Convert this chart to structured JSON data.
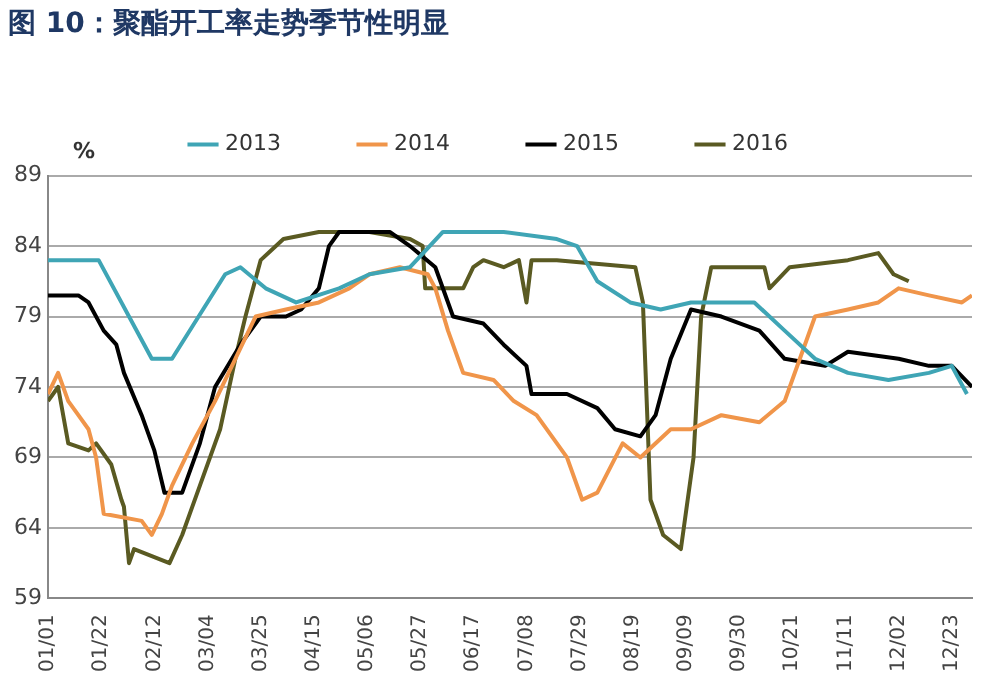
{
  "chart_data": {
    "type": "line",
    "title": "图 10：聚酯开工率走势季节性明显",
    "ylabel": "%",
    "legend": "top",
    "grid": "y",
    "marker": "none",
    "line_style": "solid",
    "xlim": [
      "--01-01",
      "--12-31"
    ],
    "ylim": [
      59,
      89
    ],
    "yticks": [
      59,
      64,
      69,
      74,
      79,
      84,
      89
    ],
    "xticks": [
      {
        "value": "--01-01",
        "label": "01/01"
      },
      {
        "value": "--01-22",
        "label": "01/22"
      },
      {
        "value": "--02-12",
        "label": "02/12"
      },
      {
        "value": "--03-04",
        "label": "03/04"
      },
      {
        "value": "--03-25",
        "label": "03/25"
      },
      {
        "value": "--04-15",
        "label": "04/15"
      },
      {
        "value": "--05-06",
        "label": "05/06"
      },
      {
        "value": "--05-27",
        "label": "05/27"
      },
      {
        "value": "--06-17",
        "label": "06/17"
      },
      {
        "value": "--07-08",
        "label": "07/08"
      },
      {
        "value": "--07-29",
        "label": "07/29"
      },
      {
        "value": "--08-19",
        "label": "08/19"
      },
      {
        "value": "--09-09",
        "label": "09/09"
      },
      {
        "value": "--09-30",
        "label": "09/30"
      },
      {
        "value": "--10-21",
        "label": "10/21"
      },
      {
        "value": "--11-11",
        "label": "11/11"
      },
      {
        "value": "--12-02",
        "label": "12/02"
      },
      {
        "value": "--12-23",
        "label": "12/23"
      }
    ],
    "series": [
      {
        "name": "2013",
        "color": "#3fa5b5",
        "x": [
          "--01-01",
          "--01-21",
          "--02-11",
          "--02-19",
          "--03-11",
          "--03-17",
          "--03-27",
          "--04-08",
          "--04-25",
          "--05-07",
          "--05-23",
          "--06-05",
          "--06-29",
          "--07-20",
          "--07-28",
          "--08-05",
          "--08-18",
          "--08-30",
          "--09-11",
          "--10-06",
          "--10-18",
          "--10-30",
          "--11-12",
          "--11-28",
          "--12-14",
          "--12-23",
          "--12-29"
        ],
        "values": [
          83,
          83,
          76,
          76,
          82,
          82.5,
          81,
          80,
          81,
          82,
          82.5,
          85,
          85,
          84.5,
          84,
          81.5,
          80,
          79.5,
          80,
          80,
          78,
          76,
          75,
          74.5,
          75,
          75.5,
          73.5
        ]
      },
      {
        "name": "2014",
        "color": "#f0954a",
        "x": [
          "--01-01",
          "--01-05",
          "--01-09",
          "--01-13",
          "--01-17",
          "--01-20",
          "--01-23",
          "--02-07",
          "--02-11",
          "--02-15",
          "--02-19",
          "--02-27",
          "--03-07",
          "--03-15",
          "--03-23",
          "--04-04",
          "--04-17",
          "--04-29",
          "--05-07",
          "--05-19",
          "--05-30",
          "--06-02",
          "--06-07",
          "--06-13",
          "--06-25",
          "--07-03",
          "--07-12",
          "--07-24",
          "--07-30",
          "--08-05",
          "--08-15",
          "--08-22",
          "--09-03",
          "--09-11",
          "--09-23",
          "--10-08",
          "--10-18",
          "--10-24",
          "--10-30",
          "--11-12",
          "--11-24",
          "--12-02",
          "--12-14",
          "--12-27",
          "--12-31"
        ],
        "values": [
          73.5,
          75,
          73,
          72,
          71,
          69,
          65,
          64.5,
          63.5,
          65,
          67,
          70,
          73,
          76,
          79,
          79.5,
          80,
          81,
          82,
          82.5,
          82,
          81,
          78,
          75,
          74.5,
          73,
          72,
          69,
          66,
          66.5,
          70,
          69,
          71,
          71,
          72,
          71.5,
          73,
          76,
          79,
          79.5,
          80,
          81,
          80.5,
          80,
          80.5
        ]
      },
      {
        "name": "2015",
        "color": "#000000",
        "x": [
          "--01-01",
          "--01-13",
          "--01-17",
          "--01-23",
          "--01-28",
          "--01-31",
          "--02-07",
          "--02-12",
          "--02-16",
          "--02-23",
          "--03-01",
          "--03-07",
          "--03-17",
          "--03-25",
          "--04-04",
          "--04-10",
          "--04-17",
          "--04-21",
          "--04-25",
          "--05-15",
          "--05-23",
          "--06-02",
          "--06-09",
          "--06-21",
          "--06-29",
          "--07-08",
          "--07-10",
          "--07-24",
          "--08-05",
          "--08-12",
          "--08-22",
          "--08-28",
          "--09-03",
          "--09-11",
          "--09-23",
          "--10-08",
          "--10-18",
          "--11-03",
          "--11-12",
          "--12-02",
          "--12-14",
          "--12-23",
          "--12-31"
        ],
        "values": [
          80.5,
          80.5,
          80,
          78,
          77,
          75,
          72,
          69.5,
          66.5,
          66.5,
          70,
          74,
          77,
          79,
          79,
          79.5,
          81,
          84,
          85,
          85,
          84,
          82.5,
          79,
          78.5,
          77,
          75.5,
          73.5,
          73.5,
          72.5,
          71,
          70.5,
          72,
          76,
          79.5,
          79,
          78,
          76,
          75.5,
          76.5,
          76,
          75.5,
          75.5,
          74
        ]
      },
      {
        "name": "2016",
        "color": "#5a5a22",
        "x": [
          "--01-01",
          "--01-05",
          "--01-09",
          "--01-17",
          "--01-20",
          "--01-26",
          "--01-30",
          "--01-31",
          "--02-02",
          "--02-04",
          "--02-11",
          "--02-18",
          "--02-23",
          "--03-01",
          "--03-09",
          "--03-15",
          "--03-19",
          "--03-25",
          "--04-03",
          "--04-17",
          "--05-07",
          "--05-23",
          "--05-28",
          "--05-29",
          "--06-13",
          "--06-17",
          "--06-21",
          "--06-29",
          "--07-05",
          "--07-08",
          "--07-10",
          "--07-20",
          "--08-20",
          "--08-23",
          "--08-26",
          "--08-31",
          "--09-07",
          "--09-12",
          "--09-15",
          "--09-19",
          "--10-10",
          "--10-12",
          "--10-20",
          "--11-12",
          "--11-24",
          "--11-30",
          "--12-06"
        ],
        "values": [
          73,
          74,
          70,
          69.5,
          70,
          68.5,
          66,
          65.5,
          61.5,
          62.5,
          62,
          61.5,
          63.5,
          67,
          71,
          76,
          79,
          83,
          84.5,
          85,
          85,
          84.5,
          84,
          81,
          81,
          82.5,
          83,
          82.5,
          83,
          80,
          83,
          83,
          82.5,
          80,
          66,
          63.5,
          62.5,
          69,
          79,
          82.5,
          82.5,
          81,
          82.5,
          83,
          83.5,
          82,
          81.5
        ]
      }
    ]
  }
}
